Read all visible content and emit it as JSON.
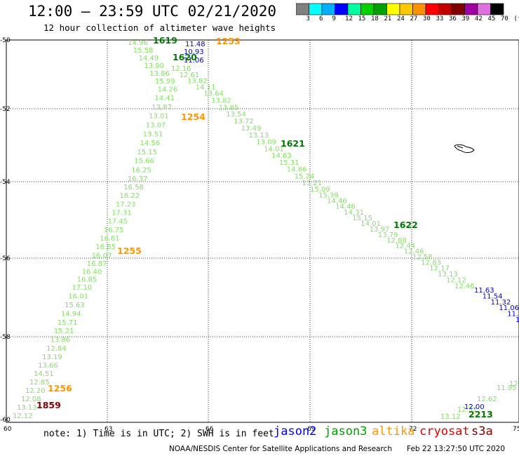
{
  "title": "12:00 – 23:59 UTC 02/21/2020",
  "subtitle": "12 hour collection of altimeter wave heights",
  "colorbar": {
    "colors": [
      "#808080",
      "#00ffff",
      "#00b0ff",
      "#0000ff",
      "#00ffa0",
      "#00d200",
      "#00a000",
      "#ffff00",
      "#ffc800",
      "#ff9000",
      "#ff0000",
      "#c00000",
      "#800000",
      "#a000a0",
      "#e070e0",
      "#000000"
    ],
    "labels": [
      "3",
      "6",
      "9",
      "12",
      "15",
      "18",
      "21",
      "24",
      "27",
      "30",
      "33",
      "36",
      "39",
      "42",
      "45",
      "70",
      "(ft)"
    ]
  },
  "axes": {
    "lon_ticks": [
      "60",
      "63",
      "66",
      "69",
      "72",
      "75"
    ],
    "lat_ticks": [
      "-50",
      "-52",
      "-54",
      "-56",
      "-58",
      "-60"
    ]
  },
  "tracks": [
    {
      "id": "jason3-track-a",
      "color": "#80e060",
      "values": [
        "14.96",
        "15.58",
        "14.49",
        "13.90",
        "13.86",
        "15.99",
        "14.26",
        "14.41",
        "13.87",
        "13.01",
        "13.07",
        "13.51",
        "14.56",
        "15.15",
        "15.66",
        "16.25",
        "16.37",
        "16.58",
        "16.22",
        "17.23",
        "17.31",
        "17.45",
        "16.75",
        "16.61",
        "16.85",
        "16.07",
        "16.87",
        "16.40",
        "16.85",
        "17.10",
        "16.01",
        "15.63",
        "14.94",
        "15.71",
        "15.21",
        "13.86",
        "12.84",
        "13.19",
        "13.66",
        "14.51",
        "12.85",
        "12.20",
        "12.08",
        "13.13",
        "12.12"
      ]
    },
    {
      "id": "jason3-track-b",
      "color": "#80e060",
      "values": [
        "12.16",
        "12.61",
        "13.82",
        "14.11",
        "13.64",
        "13.82",
        "13.85",
        "13.54",
        "13.72",
        "13.49",
        "13.13",
        "13.09",
        "14.01",
        "14.63",
        "15.31",
        "14.86",
        "15.24",
        "15.21",
        "15.09",
        "15.39",
        "14.46",
        "14.46",
        "14.31",
        "15.15",
        "14.01",
        "13.97",
        "13.79",
        "12.88",
        "12.44",
        "12.46",
        "12.58",
        "12.83",
        "12.17",
        "13.13",
        "12.12",
        "12.46"
      ]
    },
    {
      "id": "jason2-track-b",
      "color": "#0000c8",
      "values": [
        "11.63",
        "11.54",
        "11.32",
        "11.06",
        "11.81",
        "10.8"
      ]
    },
    {
      "id": "jason3-track-c",
      "color": "#80e060",
      "values": [
        "13.12",
        "12.31",
        "12.62",
        "11.95",
        "12.77"
      ]
    },
    {
      "id": "jason2-track-c",
      "color": "#0000c8",
      "values": [
        "12.00"
      ]
    },
    {
      "id": "jason2-track-a",
      "color": "#0000c8",
      "values": [
        "11.48",
        "10.93",
        "11.06"
      ]
    }
  ],
  "time_labels": [
    {
      "text": "1619",
      "color": "#007800"
    },
    {
      "text": "1620",
      "color": "#007800"
    },
    {
      "text": "1253",
      "color": "#ff9600"
    },
    {
      "text": "1254",
      "color": "#ff9600"
    },
    {
      "text": "1621",
      "color": "#007800"
    },
    {
      "text": "1622",
      "color": "#007800"
    },
    {
      "text": "1255",
      "color": "#ff9600"
    },
    {
      "text": "1256",
      "color": "#ff9600"
    },
    {
      "text": "1859",
      "color": "#800000"
    },
    {
      "text": "2213",
      "color": "#007800"
    }
  ],
  "note": "note: 1) Time is in UTC; 2) SWH is in feet",
  "legend": [
    {
      "name": "jason2",
      "color": "#0000ff"
    },
    {
      "name": "jason3",
      "color": "#00a000"
    },
    {
      "name": "altika",
      "color": "#ff9600"
    },
    {
      "name": "cryosat",
      "color": "#e00000"
    },
    {
      "name": "s3a",
      "color": "#800000"
    }
  ],
  "credit": "NOAA/NESDIS Center for Satellite Applications and Research",
  "timestamp": "Feb 22 13:27:50 UTC 2020"
}
